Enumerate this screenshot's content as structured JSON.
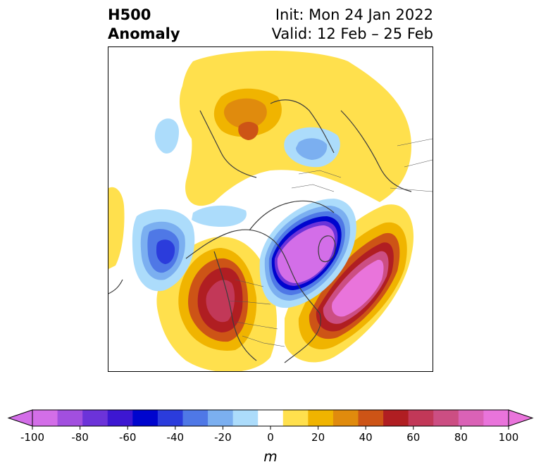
{
  "title": {
    "left_line1": "H500",
    "left_line2": "Anomaly",
    "right_line1": "Init: Mon 24 Jan 2022",
    "right_line2": "Valid: 12 Feb – 25 Feb"
  },
  "map": {
    "projection": "polar-stereographic (north pole)",
    "field": "500 hPa geopotential height anomaly",
    "features": [
      {
        "name": "ridge-western-north-america",
        "anomaly_m": 80
      },
      {
        "name": "ridge-north-atlantic",
        "anomaly_m": 100
      },
      {
        "name": "trough-eastern-canada",
        "anomaly_m": -100
      },
      {
        "name": "trough-north-pacific",
        "anomaly_m": -60
      },
      {
        "name": "ridge-arctic-siberia",
        "anomaly_m": 50
      },
      {
        "name": "trough-arctic-small",
        "anomaly_m": -30
      }
    ]
  },
  "colorbar": {
    "levels": [
      -100,
      -90,
      -80,
      -70,
      -60,
      -50,
      -40,
      -30,
      -20,
      -10,
      10,
      20,
      30,
      40,
      50,
      60,
      70,
      80,
      90,
      100
    ],
    "ticks": [
      "-100",
      "-80",
      "-60",
      "-40",
      "-20",
      "0",
      "20",
      "40",
      "60",
      "80",
      "100"
    ],
    "colors": [
      "#d36ee8",
      "#a24fdf",
      "#6c33d9",
      "#3d17d2",
      "#0005ce",
      "#2b3cdc",
      "#4f78e6",
      "#7baff0",
      "#acdcfb",
      "#ffffff",
      "#ffe04d",
      "#f0b400",
      "#e08b0d",
      "#cd5416",
      "#b01e22",
      "#c23858",
      "#cc4e83",
      "#da62b6",
      "#e974db"
    ],
    "unit": "m",
    "extend": "both"
  }
}
